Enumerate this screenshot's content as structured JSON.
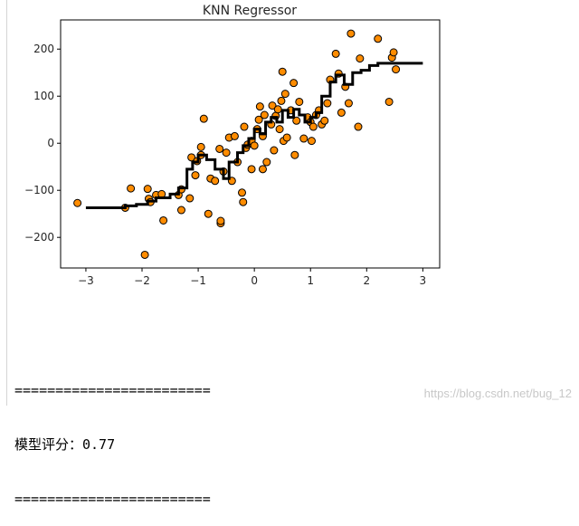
{
  "chart_data": {
    "type": "scatter",
    "title": "KNN Regressor",
    "xlabel": "",
    "ylabel": "",
    "xlim": [
      -3.45,
      3.3
    ],
    "ylim": [
      -265,
      262
    ],
    "x_ticks": [
      -3,
      -2,
      -1,
      0,
      1,
      2,
      3
    ],
    "y_ticks": [
      -200,
      -100,
      0,
      100,
      200
    ],
    "grid": false,
    "point_color": "#ff8c00",
    "point_edge_color": "#000000",
    "line_color": "#000000",
    "points": [
      {
        "x": -3.15,
        "y": -127
      },
      {
        "x": -2.3,
        "y": -137
      },
      {
        "x": -2.2,
        "y": -96
      },
      {
        "x": -1.95,
        "y": -237
      },
      {
        "x": -1.9,
        "y": -97
      },
      {
        "x": -1.88,
        "y": -118
      },
      {
        "x": -1.85,
        "y": -125
      },
      {
        "x": -1.75,
        "y": -110
      },
      {
        "x": -1.65,
        "y": -108
      },
      {
        "x": -1.62,
        "y": -164
      },
      {
        "x": -1.35,
        "y": -110
      },
      {
        "x": -1.3,
        "y": -142
      },
      {
        "x": -1.3,
        "y": -98
      },
      {
        "x": -1.15,
        "y": -117
      },
      {
        "x": -1.12,
        "y": -30
      },
      {
        "x": -1.05,
        "y": -68
      },
      {
        "x": -1.02,
        "y": -38
      },
      {
        "x": -0.95,
        "y": -8
      },
      {
        "x": -0.95,
        "y": -25
      },
      {
        "x": -0.9,
        "y": 52
      },
      {
        "x": -0.82,
        "y": -150
      },
      {
        "x": -0.78,
        "y": -75
      },
      {
        "x": -0.7,
        "y": -80
      },
      {
        "x": -0.62,
        "y": -12
      },
      {
        "x": -0.6,
        "y": -170
      },
      {
        "x": -0.6,
        "y": -165
      },
      {
        "x": -0.55,
        "y": -60
      },
      {
        "x": -0.5,
        "y": -20
      },
      {
        "x": -0.45,
        "y": 12
      },
      {
        "x": -0.4,
        "y": -80
      },
      {
        "x": -0.35,
        "y": 15
      },
      {
        "x": -0.3,
        "y": -40
      },
      {
        "x": -0.22,
        "y": -105
      },
      {
        "x": -0.2,
        "y": -125
      },
      {
        "x": -0.18,
        "y": 35
      },
      {
        "x": -0.15,
        "y": -10
      },
      {
        "x": -0.12,
        "y": -3
      },
      {
        "x": -0.05,
        "y": 5
      },
      {
        "x": -0.05,
        "y": -55
      },
      {
        "x": 0.0,
        "y": -5
      },
      {
        "x": 0.05,
        "y": 30
      },
      {
        "x": 0.08,
        "y": 50
      },
      {
        "x": 0.1,
        "y": 78
      },
      {
        "x": 0.15,
        "y": -55
      },
      {
        "x": 0.15,
        "y": 15
      },
      {
        "x": 0.18,
        "y": 60
      },
      {
        "x": 0.22,
        "y": -40
      },
      {
        "x": 0.3,
        "y": 40
      },
      {
        "x": 0.32,
        "y": 80
      },
      {
        "x": 0.35,
        "y": -15
      },
      {
        "x": 0.38,
        "y": 58
      },
      {
        "x": 0.42,
        "y": 72
      },
      {
        "x": 0.45,
        "y": 30
      },
      {
        "x": 0.48,
        "y": 90
      },
      {
        "x": 0.5,
        "y": 152
      },
      {
        "x": 0.52,
        "y": 5
      },
      {
        "x": 0.55,
        "y": 105
      },
      {
        "x": 0.58,
        "y": 12
      },
      {
        "x": 0.65,
        "y": 70
      },
      {
        "x": 0.7,
        "y": 128
      },
      {
        "x": 0.72,
        "y": -25
      },
      {
        "x": 0.75,
        "y": 48
      },
      {
        "x": 0.8,
        "y": 88
      },
      {
        "x": 0.88,
        "y": 10
      },
      {
        "x": 0.95,
        "y": 55
      },
      {
        "x": 1.0,
        "y": 45
      },
      {
        "x": 1.02,
        "y": 5
      },
      {
        "x": 1.05,
        "y": 35
      },
      {
        "x": 1.1,
        "y": 60
      },
      {
        "x": 1.15,
        "y": 70
      },
      {
        "x": 1.2,
        "y": 40
      },
      {
        "x": 1.25,
        "y": 48
      },
      {
        "x": 1.3,
        "y": 85
      },
      {
        "x": 1.35,
        "y": 135
      },
      {
        "x": 1.45,
        "y": 190
      },
      {
        "x": 1.5,
        "y": 148
      },
      {
        "x": 1.55,
        "y": 65
      },
      {
        "x": 1.62,
        "y": 120
      },
      {
        "x": 1.68,
        "y": 85
      },
      {
        "x": 1.72,
        "y": 233
      },
      {
        "x": 1.85,
        "y": 35
      },
      {
        "x": 1.88,
        "y": 180
      },
      {
        "x": 2.2,
        "y": 222
      },
      {
        "x": 2.4,
        "y": 88
      },
      {
        "x": 2.45,
        "y": 182
      },
      {
        "x": 2.48,
        "y": 193
      },
      {
        "x": 2.52,
        "y": 157
      }
    ],
    "line": {
      "x": [
        -3.0,
        -2.3,
        -2.3,
        -2.1,
        -2.1,
        -1.9,
        -1.9,
        -1.75,
        -1.75,
        -1.5,
        -1.5,
        -1.35,
        -1.35,
        -1.2,
        -1.2,
        -1.1,
        -1.1,
        -1.0,
        -1.0,
        -0.85,
        -0.85,
        -0.7,
        -0.7,
        -0.55,
        -0.55,
        -0.45,
        -0.45,
        -0.3,
        -0.3,
        -0.2,
        -0.2,
        -0.1,
        -0.1,
        0.0,
        0.0,
        0.1,
        0.1,
        0.2,
        0.2,
        0.3,
        0.3,
        0.4,
        0.4,
        0.5,
        0.5,
        0.6,
        0.6,
        0.7,
        0.7,
        0.8,
        0.8,
        0.9,
        0.9,
        1.0,
        1.0,
        1.1,
        1.1,
        1.2,
        1.2,
        1.35,
        1.35,
        1.45,
        1.45,
        1.6,
        1.6,
        1.75,
        1.75,
        1.9,
        1.9,
        2.05,
        2.05,
        2.2,
        2.2,
        3.0
      ],
      "y": [
        -137,
        -137,
        -133,
        -133,
        -130,
        -130,
        -123,
        -123,
        -116,
        -116,
        -108,
        -108,
        -95,
        -95,
        -55,
        -55,
        -40,
        -40,
        -25,
        -25,
        -35,
        -35,
        -55,
        -55,
        -75,
        -75,
        -40,
        -40,
        -20,
        -20,
        -5,
        -5,
        10,
        10,
        30,
        30,
        20,
        20,
        45,
        45,
        55,
        55,
        45,
        45,
        70,
        70,
        55,
        55,
        72,
        72,
        60,
        60,
        45,
        45,
        55,
        55,
        65,
        65,
        100,
        100,
        130,
        130,
        145,
        145,
        125,
        125,
        150,
        150,
        155,
        155,
        165,
        165,
        170,
        170
      ]
    }
  },
  "output": {
    "separator_top": "========================",
    "score_line": "模型评分：0.77",
    "separator_bottom": "========================"
  },
  "watermark": "https://blog.csdn.net/bug_12"
}
